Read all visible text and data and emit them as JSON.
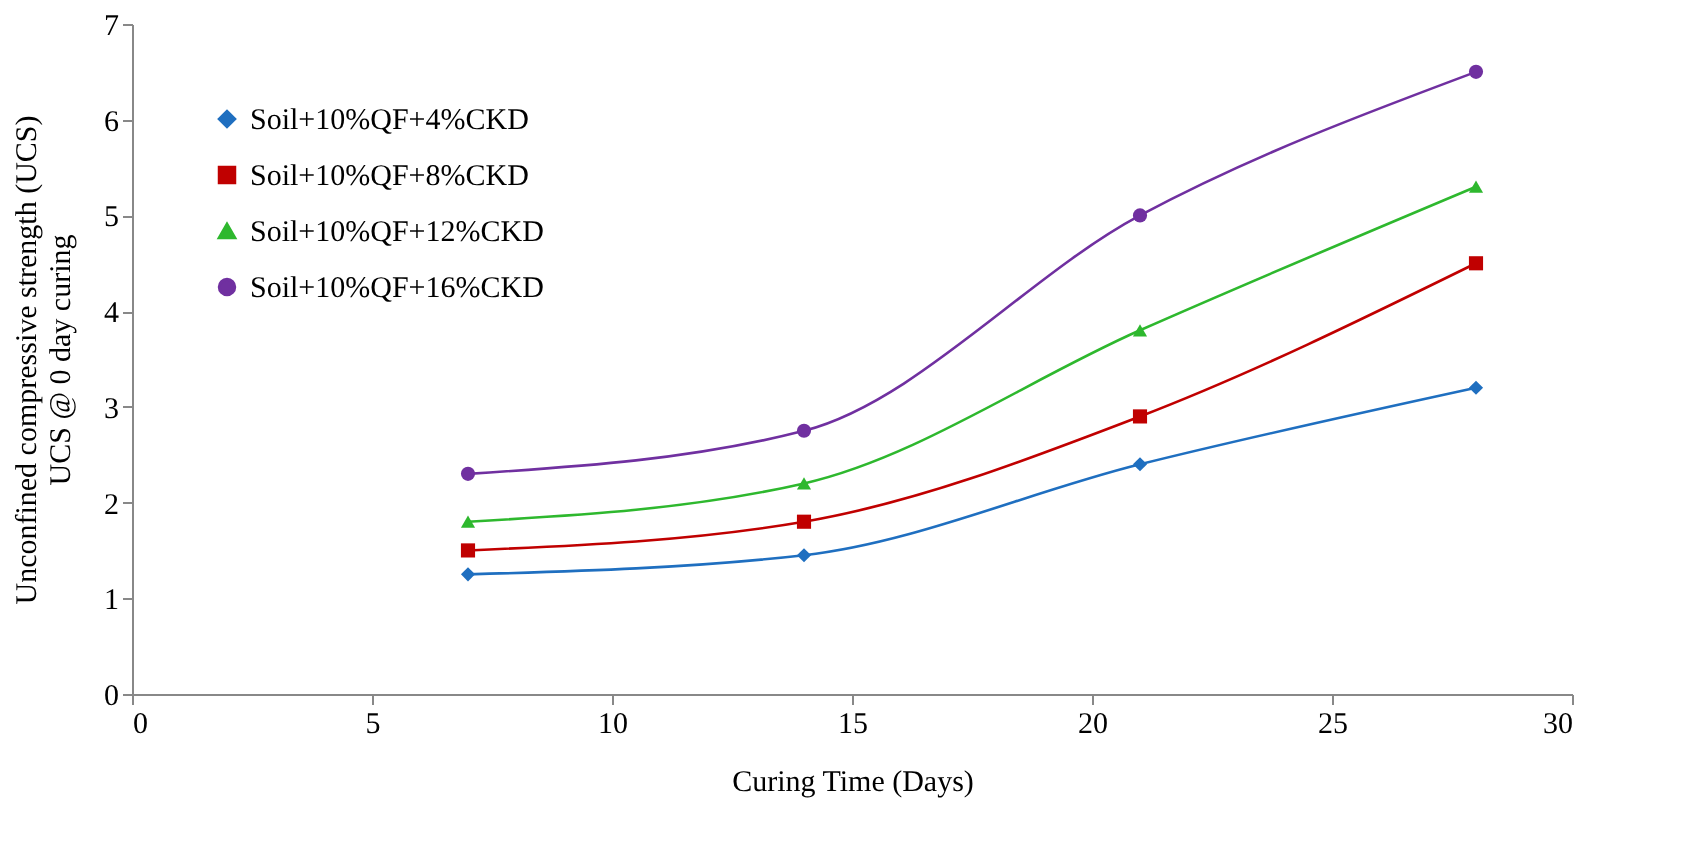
{
  "chart_data": {
    "type": "line",
    "xlabel": "Curing Time (Days)",
    "ylabel": "Unconfined compressive strength (UCS)\nUCS @ 0 day curing",
    "x": [
      7,
      14,
      21,
      28
    ],
    "series": [
      {
        "name": "Soil+10%QF+4%CKD",
        "color": "#1f6fc0",
        "marker": "diamond",
        "values": [
          1.25,
          1.45,
          2.4,
          3.2
        ]
      },
      {
        "name": "Soil+10%QF+8%CKD",
        "color": "#c00000",
        "marker": "square",
        "values": [
          1.5,
          1.8,
          2.9,
          4.5
        ]
      },
      {
        "name": "Soil+10%QF+12%CKD",
        "color": "#2eb82e",
        "marker": "triangle",
        "values": [
          1.8,
          2.2,
          3.8,
          5.3
        ]
      },
      {
        "name": "Soil+10%QF+16%CKD",
        "color": "#7030a0",
        "marker": "circle",
        "values": [
          2.3,
          2.75,
          5.0,
          6.5
        ]
      }
    ],
    "xlim": [
      0,
      30
    ],
    "xticks": [
      0,
      5,
      10,
      15,
      20,
      25,
      30
    ],
    "ylim": [
      0,
      7
    ],
    "yticks": [
      0,
      1,
      2,
      3,
      4,
      5,
      6,
      7
    ],
    "grid": false,
    "legend": "top left",
    "line_style": "solid"
  }
}
